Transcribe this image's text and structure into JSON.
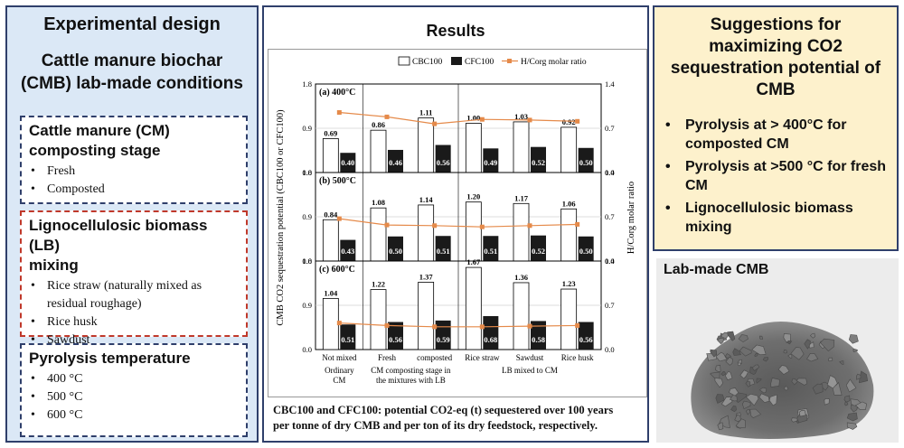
{
  "left": {
    "title": "Experimental design",
    "cmb_title_line1": "Cattle manure biochar",
    "cmb_title_line2": "(CMB) lab-made conditions",
    "box1": {
      "title_line1": "Cattle manure (CM)",
      "title_line2": "composting stage",
      "items": [
        "Fresh",
        "Composted"
      ]
    },
    "box2": {
      "title_line1": "Lignocellulosic biomass (LB)",
      "title_line2": "mixing",
      "items": [
        "Rice straw (naturally mixed as residual roughage)",
        "Rice husk",
        "Sawdust"
      ]
    },
    "box3": {
      "title": "Pyrolysis temperature",
      "items": [
        "400 °C",
        "500 °C",
        "600 °C"
      ]
    }
  },
  "middle": {
    "title": "Results",
    "footnote_line1": "CBC100 and CFC100: potential CO2-eq (t) sequestered over 100 years",
    "footnote_line2": "per tonne of dry CMB and per ton of its dry feedstock, respectively."
  },
  "right": {
    "title_line1": "Suggestions for",
    "title_line2": "maximizing CO2",
    "title_line3": "sequestration potential of",
    "title_line4": "CMB",
    "items": [
      "Pyrolysis at > 400°C for composted CM",
      "Pyrolysis at >500 °C for fresh CM",
      "Lignocellulosic biomass mixing"
    ]
  },
  "photo": {
    "label": "Lab-made CMB"
  },
  "chart_data": {
    "type": "bar",
    "categories": [
      "Not mixed",
      "Fresh",
      "composted",
      "Rice straw",
      "Sawdust",
      "Rice husk"
    ],
    "groups": [
      {
        "label_line1": "Ordinary",
        "label_line2": "CM"
      },
      {
        "label_line1": "CM composting stage in",
        "label_line2": "the mixtures with LB"
      },
      {
        "label_line1": "LB mixed to CM",
        "label_line2": ""
      }
    ],
    "legend": [
      "CBC100",
      "CFC100",
      "H/Corg molar ratio"
    ],
    "ylabel_left": "CMB CO2 sequestration potential (CBC100 or CFC100)",
    "ylabel_right": "H/Corg molar ratio",
    "ylim_left": [
      0,
      1.8
    ],
    "ylim_right": [
      0,
      1.4
    ],
    "left_ticks": [
      "0.0",
      "0.9",
      "1.8"
    ],
    "right_ticks": [
      "0.0",
      "0.7",
      "1.4"
    ],
    "panels": [
      {
        "label": "(a) 400°C",
        "cbc": [
          0.69,
          0.86,
          1.11,
          1.0,
          1.03,
          0.92
        ],
        "cfc": [
          0.4,
          0.46,
          0.56,
          0.49,
          0.52,
          0.5
        ],
        "hc": [
          0.95,
          0.88,
          0.77,
          0.84,
          0.83,
          0.81
        ]
      },
      {
        "label": "(b) 500°C",
        "cbc": [
          0.84,
          1.08,
          1.14,
          1.2,
          1.17,
          1.06
        ],
        "cfc": [
          0.43,
          0.5,
          0.51,
          0.51,
          0.52,
          0.5
        ],
        "hc": [
          0.67,
          0.57,
          0.56,
          0.54,
          0.56,
          0.58
        ]
      },
      {
        "label": "(c) 600°C",
        "cbc": [
          1.04,
          1.22,
          1.37,
          1.67,
          1.36,
          1.23
        ],
        "cfc": [
          0.51,
          0.56,
          0.59,
          0.68,
          0.58,
          0.56
        ],
        "hc": [
          0.42,
          0.38,
          0.36,
          0.36,
          0.37,
          0.38
        ]
      }
    ],
    "colors": {
      "cbc": "#ffffff",
      "cfc": "#1a1a1a",
      "hc": "#e58a4a"
    }
  }
}
